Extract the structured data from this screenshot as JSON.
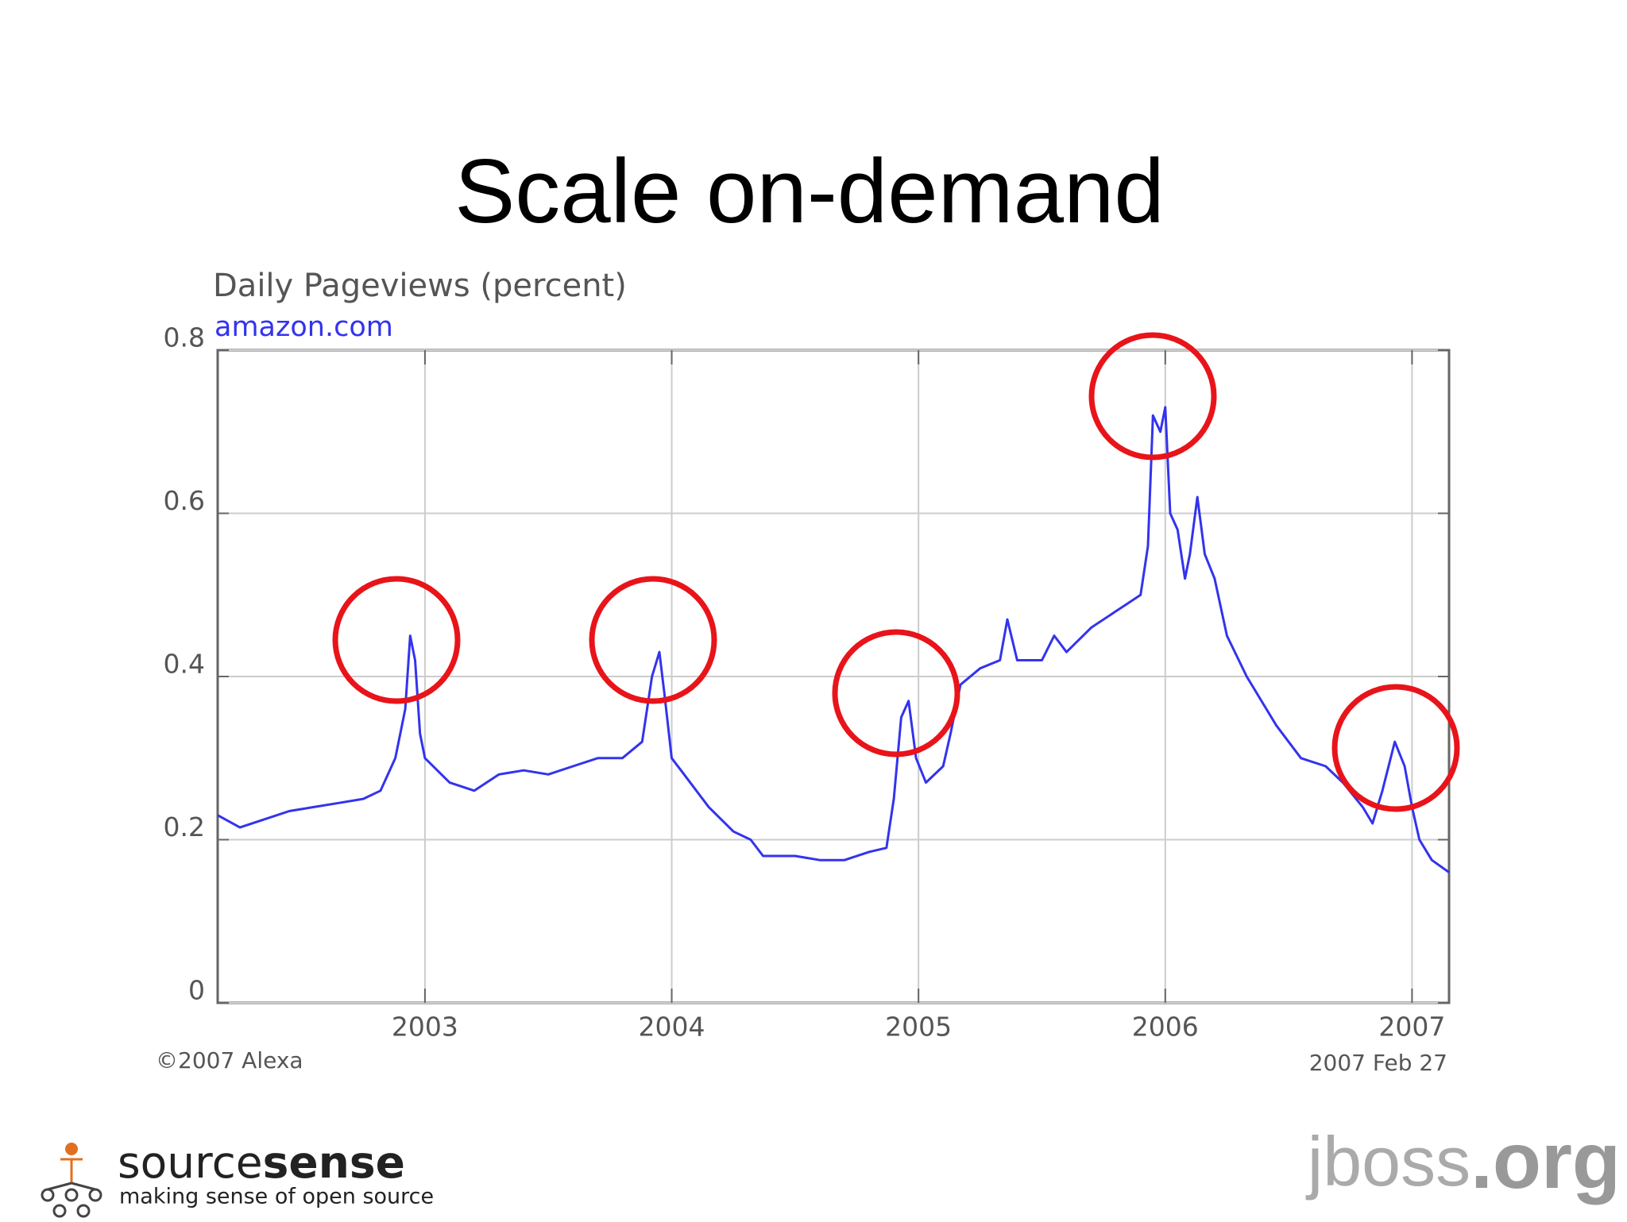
{
  "slide_title": "Scale on-demand",
  "chart_data": {
    "type": "line",
    "title": "Daily Pageviews (percent)",
    "subtitle": "amazon.com",
    "x": [
      2002.16,
      2002.25,
      2002.35,
      2002.45,
      2002.55,
      2002.65,
      2002.75,
      2002.82,
      2002.88,
      2002.92,
      2002.94,
      2002.96,
      2002.98,
      2003.0,
      2003.1,
      2003.2,
      2003.3,
      2003.4,
      2003.5,
      2003.6,
      2003.7,
      2003.8,
      2003.88,
      2003.92,
      2003.95,
      2003.97,
      2004.0,
      2004.05,
      2004.15,
      2004.25,
      2004.32,
      2004.37,
      2004.5,
      2004.6,
      2004.7,
      2004.8,
      2004.87,
      2004.9,
      2004.93,
      2004.96,
      2004.99,
      2005.03,
      2005.1,
      2005.13,
      2005.17,
      2005.25,
      2005.33,
      2005.36,
      2005.4,
      2005.5,
      2005.55,
      2005.6,
      2005.7,
      2005.8,
      2005.9,
      2005.93,
      2005.95,
      2005.98,
      2006.0,
      2006.02,
      2006.05,
      2006.08,
      2006.1,
      2006.13,
      2006.16,
      2006.2,
      2006.25,
      2006.33,
      2006.45,
      2006.55,
      2006.65,
      2006.72,
      2006.8,
      2006.84,
      2006.88,
      2006.93,
      2006.97,
      2007.0,
      2007.03,
      2007.08,
      2007.15
    ],
    "values": [
      0.23,
      0.215,
      0.225,
      0.235,
      0.24,
      0.245,
      0.25,
      0.26,
      0.3,
      0.36,
      0.45,
      0.42,
      0.33,
      0.3,
      0.27,
      0.26,
      0.28,
      0.285,
      0.28,
      0.29,
      0.3,
      0.3,
      0.32,
      0.4,
      0.43,
      0.38,
      0.3,
      0.28,
      0.24,
      0.21,
      0.2,
      0.18,
      0.18,
      0.175,
      0.175,
      0.185,
      0.19,
      0.25,
      0.35,
      0.37,
      0.3,
      0.27,
      0.29,
      0.33,
      0.39,
      0.41,
      0.42,
      0.47,
      0.42,
      0.42,
      0.45,
      0.43,
      0.46,
      0.48,
      0.5,
      0.56,
      0.72,
      0.7,
      0.73,
      0.6,
      0.58,
      0.52,
      0.55,
      0.62,
      0.55,
      0.52,
      0.45,
      0.4,
      0.34,
      0.3,
      0.29,
      0.27,
      0.24,
      0.22,
      0.26,
      0.32,
      0.29,
      0.24,
      0.2,
      0.175,
      0.16
    ],
    "color": "#3333ee",
    "xlim": [
      2002.16,
      2007.15
    ],
    "xticks": [
      2003,
      2004,
      2005,
      2006,
      2007
    ],
    "ylim": [
      0,
      0.8
    ],
    "yticks": [
      0,
      0.2,
      0.4,
      0.6,
      0.8
    ],
    "grid": true
  },
  "footer_left": "©2007 Alexa",
  "footer_right": "2007 Feb 27",
  "logo_left": {
    "name_light": "source",
    "name_bold": "sense",
    "tagline": "making sense of open source"
  },
  "logo_right": {
    "name": "jboss",
    "suffix": ".org"
  }
}
